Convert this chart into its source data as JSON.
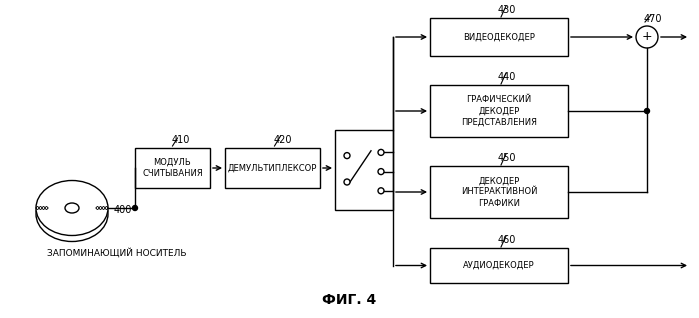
{
  "bg_color": "#ffffff",
  "title": "ФИГ. 4",
  "title_fontsize": 10,
  "labels": {
    "400": "400",
    "410": "410",
    "420": "420",
    "430": "430",
    "440": "440",
    "450": "450",
    "460": "460",
    "470": "470"
  },
  "box_labels": {
    "read_module": "МОДУЛЬ\nСЧИТЫВАНИЯ",
    "demux": "ДЕМУЛЬТИПЛЕКСОР",
    "video_dec": "ВИДЕОДЕКОДЕР",
    "graph_dec": "ГРАФИЧЕСКИЙ\nДЕКОДЕР\nПРЕДСТАВЛЕНИЯ",
    "inter_dec": "ДЕКОДЕР\nИНТЕРАКТИВНОЙ\nГРАФИКИ",
    "audio_dec": "АУДИОДЕКОДЕР",
    "storage": "ЗАПОМИНАЮЩИЙ НОСИТЕЛЬ"
  },
  "font_size_box": 6.0,
  "font_size_label": 7.0,
  "font_size_storage": 6.5
}
